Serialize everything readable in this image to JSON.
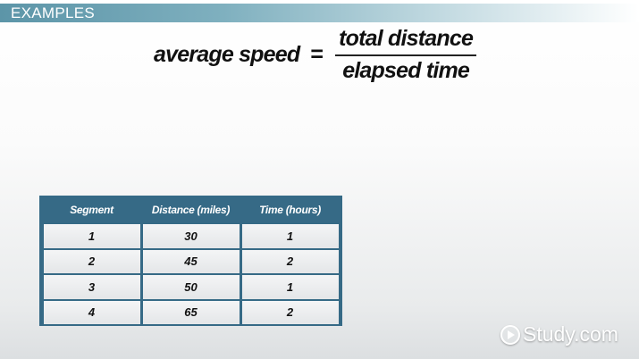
{
  "section_title": "EXAMPLES",
  "formula": {
    "lhs": "average speed",
    "equals": "=",
    "numerator": "total distance",
    "denominator": "elapsed time"
  },
  "table": {
    "headers": [
      "Segment",
      "Distance (miles)",
      "Time (hours)"
    ],
    "rows": [
      [
        "1",
        "30",
        "1"
      ],
      [
        "2",
        "45",
        "2"
      ],
      [
        "3",
        "50",
        "1"
      ],
      [
        "4",
        "65",
        "2"
      ]
    ]
  },
  "logo": {
    "text": "Study.com",
    "icon": "play-circle-icon"
  },
  "colors": {
    "table_frame": "#366a86",
    "banner": "#5c95a8"
  }
}
